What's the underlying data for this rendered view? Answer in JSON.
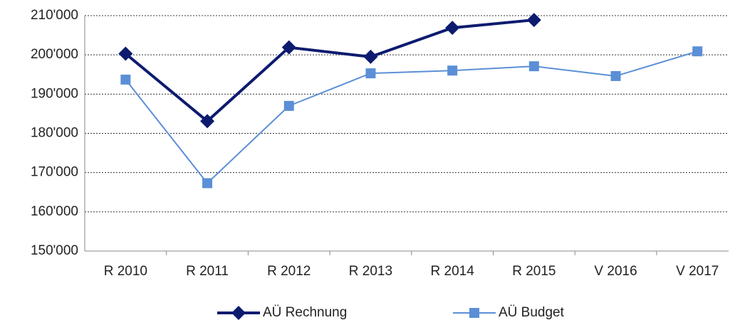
{
  "chart_data": {
    "type": "line",
    "categories": [
      "R 2010",
      "R 2011",
      "R 2012",
      "R 2013",
      "R 2014",
      "R 2015",
      "V 2016",
      "V 2017"
    ],
    "series": [
      {
        "name": "AÜ Rechnung",
        "color": "#0d1b6f",
        "marker": "diamond",
        "values": [
          200300,
          183100,
          201900,
          199500,
          206900,
          208900,
          null,
          null
        ]
      },
      {
        "name": "AÜ Budget",
        "color": "#5b8fd6",
        "marker": "square",
        "values": [
          193700,
          167300,
          187000,
          195300,
          196000,
          197100,
          194600,
          200900
        ]
      }
    ],
    "ylim": [
      150000,
      210000
    ],
    "yticks": [
      {
        "value": 150000,
        "label": "150'000"
      },
      {
        "value": 160000,
        "label": "160'000"
      },
      {
        "value": 170000,
        "label": "170'000"
      },
      {
        "value": 180000,
        "label": "180'000"
      },
      {
        "value": 190000,
        "label": "190'000"
      },
      {
        "value": 200000,
        "label": "200'000"
      },
      {
        "value": 210000,
        "label": "210'000"
      }
    ],
    "grid": true,
    "legend": "bottom"
  }
}
